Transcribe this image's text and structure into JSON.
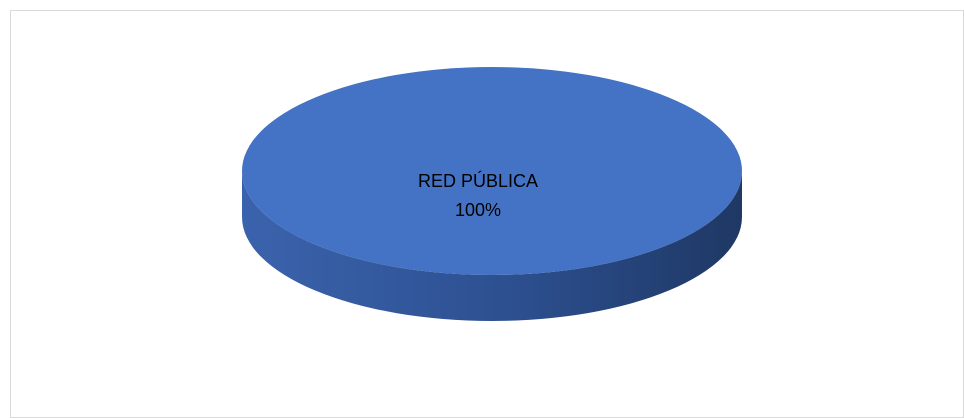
{
  "chart_data": {
    "type": "pie",
    "style": "3d",
    "title": "",
    "legend": "none",
    "slices": [
      {
        "label": "RED PÚBLICA",
        "value": 100,
        "percent_label": "100%",
        "color": "#4472c4"
      }
    ]
  },
  "colors": {
    "top": "#4472c4",
    "side_light": "#3b63ad",
    "side_dark": "#1f3864",
    "frame_border": "#d9d9d9"
  }
}
